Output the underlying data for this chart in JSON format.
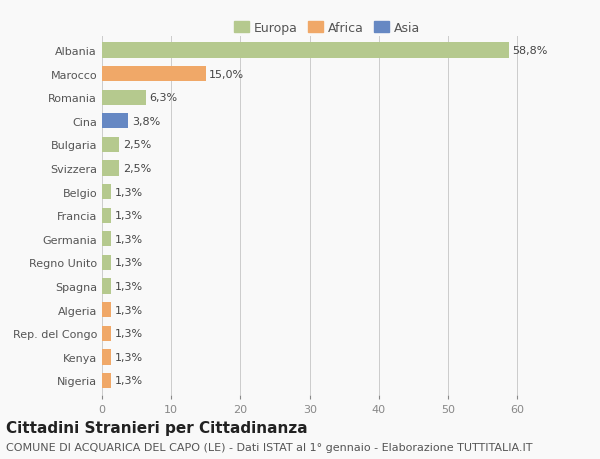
{
  "categories": [
    "Albania",
    "Marocco",
    "Romania",
    "Cina",
    "Bulgaria",
    "Svizzera",
    "Belgio",
    "Francia",
    "Germania",
    "Regno Unito",
    "Spagna",
    "Algeria",
    "Rep. del Congo",
    "Kenya",
    "Nigeria"
  ],
  "values": [
    58.8,
    15.0,
    6.3,
    3.8,
    2.5,
    2.5,
    1.3,
    1.3,
    1.3,
    1.3,
    1.3,
    1.3,
    1.3,
    1.3,
    1.3
  ],
  "colors": [
    "#b5c98e",
    "#f0a868",
    "#b5c98e",
    "#6688c3",
    "#b5c98e",
    "#b5c98e",
    "#b5c98e",
    "#b5c98e",
    "#b5c98e",
    "#b5c98e",
    "#b5c98e",
    "#f0a868",
    "#f0a868",
    "#f0a868",
    "#f0a868"
  ],
  "legend_labels": [
    "Europa",
    "Africa",
    "Asia"
  ],
  "legend_colors": [
    "#b5c98e",
    "#f0a868",
    "#6688c3"
  ],
  "labels": [
    "58,8%",
    "15,0%",
    "6,3%",
    "3,8%",
    "2,5%",
    "2,5%",
    "1,3%",
    "1,3%",
    "1,3%",
    "1,3%",
    "1,3%",
    "1,3%",
    "1,3%",
    "1,3%",
    "1,3%"
  ],
  "title": "Cittadini Stranieri per Cittadinanza",
  "subtitle": "COMUNE DI ACQUARICA DEL CAPO (LE) - Dati ISTAT al 1° gennaio - Elaborazione TUTTITALIA.IT",
  "xlim": [
    0,
    65
  ],
  "xticks": [
    0,
    10,
    20,
    30,
    40,
    50,
    60
  ],
  "background_color": "#f9f9f9",
  "grid_color": "#cccccc",
  "bar_height": 0.65,
  "title_fontsize": 11,
  "subtitle_fontsize": 8,
  "label_fontsize": 8,
  "tick_fontsize": 8,
  "legend_fontsize": 9
}
